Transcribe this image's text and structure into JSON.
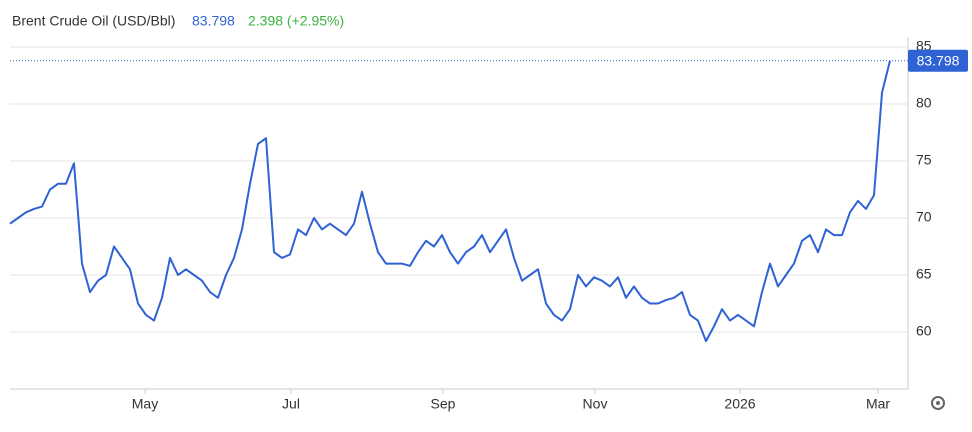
{
  "chart_data": {
    "type": "line",
    "title": "Brent Crude Oil (USD/Bbl)",
    "last_price": 83.798,
    "change": "2.398 (+2.95%)",
    "color": "#2f62d4",
    "change_color": "#3cb33c",
    "grid": true,
    "ylim": [
      55,
      85
    ],
    "yticks": [
      60,
      65,
      70,
      75,
      80,
      85
    ],
    "xlim": [
      0,
      110
    ],
    "xticks": [
      {
        "value": 16.875,
        "label": "May"
      },
      {
        "value": 35.125,
        "label": "Jul"
      },
      {
        "value": 54.125,
        "label": "Sep"
      },
      {
        "value": 73.125,
        "label": "Nov"
      },
      {
        "value": 91.25,
        "label": "2026"
      },
      {
        "value": 108.5,
        "label": "Mar"
      }
    ],
    "values": [
      69.5,
      70,
      70.5,
      70.8,
      71,
      72.5,
      73,
      73,
      74.8,
      66,
      63.5,
      64.5,
      65,
      67.5,
      66.5,
      65.5,
      62.5,
      61.5,
      61,
      63,
      66.5,
      65,
      65.5,
      65,
      64.5,
      63.5,
      63,
      65,
      66.5,
      69,
      73,
      76.5,
      77,
      67,
      66.5,
      66.8,
      69,
      68.5,
      70,
      69,
      69.5,
      69,
      68.5,
      69.5,
      72.3,
      69.5,
      67,
      66,
      66,
      66,
      65.8,
      67,
      68,
      67.5,
      68.5,
      67,
      66,
      67,
      67.5,
      68.5,
      67,
      68,
      69,
      66.5,
      64.5,
      65,
      65.5,
      62.5,
      61.5,
      61,
      62,
      65,
      64,
      64.8,
      64.5,
      64,
      64.8,
      63,
      64,
      63,
      62.5,
      62.5,
      62.8,
      63,
      63.5,
      61.5,
      61,
      59.2,
      60.5,
      62,
      61,
      61.5,
      61,
      60.5,
      63.5,
      66,
      64,
      65,
      66,
      68,
      68.5,
      67,
      69,
      68.5,
      68.5,
      70.5,
      71.5,
      70.8,
      72,
      81,
      83.798
    ]
  }
}
